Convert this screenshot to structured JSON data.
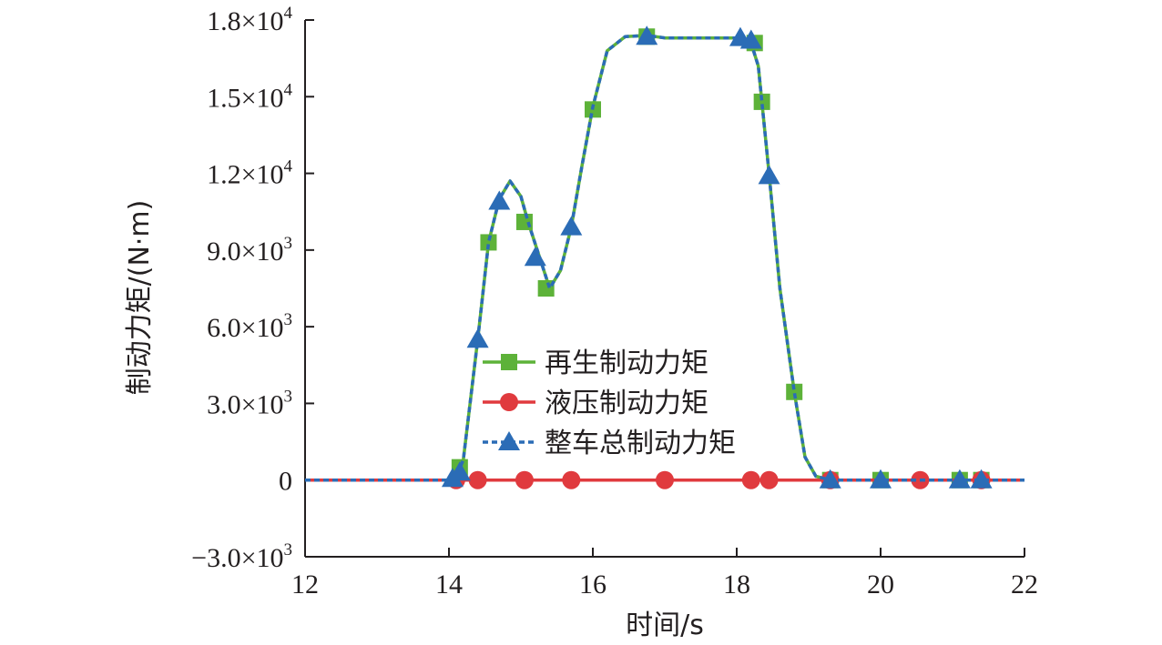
{
  "chart_data": {
    "type": "line",
    "title": "",
    "xlabel": "时间/s",
    "ylabel": "制动力矩/(N·m)",
    "xlim": [
      12,
      22
    ],
    "ylim": [
      -3000,
      18000
    ],
    "x_ticks": [
      12,
      14,
      16,
      18,
      20,
      22
    ],
    "x_tick_labels": [
      "12",
      "14",
      "16",
      "18",
      "20",
      "22"
    ],
    "y_ticks": [
      {
        "value": 18000,
        "mant": "1.8×10",
        "exp": "4"
      },
      {
        "value": 15000,
        "mant": "1.5×10",
        "exp": "4"
      },
      {
        "value": 12000,
        "mant": "1.2×10",
        "exp": "4"
      },
      {
        "value": 9000,
        "mant": "9.0×10",
        "exp": "3"
      },
      {
        "value": 6000,
        "mant": "6.0×10",
        "exp": "3"
      },
      {
        "value": 3000,
        "mant": "3.0×10",
        "exp": "3"
      },
      {
        "value": 0,
        "mant": "0",
        "exp": ""
      },
      {
        "value": -3000,
        "mant": "−3.0×10",
        "exp": "3"
      }
    ],
    "grid": false,
    "legend_position": "center-left",
    "series": [
      {
        "name": "再生制动力矩",
        "color": "#5db239",
        "marker": "square",
        "dash": "solid",
        "x": [
          12,
          14,
          14.1,
          14.2,
          14.4,
          14.55,
          14.7,
          14.85,
          15.0,
          15.1,
          15.25,
          15.4,
          15.55,
          15.7,
          15.85,
          16.0,
          16.2,
          16.45,
          16.75,
          17.0,
          17.5,
          18.0,
          18.1,
          18.2,
          18.3,
          18.45,
          18.6,
          18.8,
          18.95,
          19.1,
          19.3,
          20.0,
          21.0,
          22.0
        ],
        "y": [
          0,
          0,
          100,
          800,
          5500,
          9300,
          11000,
          11700,
          11100,
          10100,
          8800,
          7500,
          8200,
          9900,
          12300,
          14600,
          16800,
          17350,
          17400,
          17300,
          17300,
          17300,
          17250,
          17100,
          16200,
          12000,
          7500,
          3450,
          900,
          150,
          0,
          0,
          0,
          0
        ],
        "markers_x": [
          14.15,
          14.55,
          15.05,
          15.35,
          16.0,
          16.75,
          18.25,
          18.35,
          18.8,
          19.3,
          20.0,
          21.1,
          21.4
        ],
        "markers_y": [
          500,
          9300,
          10100,
          7500,
          14500,
          17350,
          17100,
          14800,
          3450,
          0,
          0,
          0,
          0
        ]
      },
      {
        "name": "液压制动力矩",
        "color": "#e03a3e",
        "marker": "circle",
        "dash": "solid",
        "x": [
          12,
          22
        ],
        "y": [
          0,
          0
        ],
        "markers_x": [
          14.1,
          14.4,
          15.05,
          15.7,
          17.0,
          18.2,
          18.45,
          19.3,
          20.55,
          21.4
        ],
        "markers_y": [
          0,
          0,
          0,
          0,
          0,
          0,
          0,
          0,
          0,
          0
        ]
      },
      {
        "name": "整车总制动力矩",
        "color": "#2b6cb6",
        "marker": "triangle",
        "dash": "dashed",
        "x": [
          12,
          14,
          14.1,
          14.2,
          14.4,
          14.55,
          14.7,
          14.85,
          15.0,
          15.1,
          15.25,
          15.4,
          15.55,
          15.7,
          15.85,
          16.0,
          16.2,
          16.45,
          16.75,
          17.0,
          17.5,
          18.0,
          18.1,
          18.2,
          18.3,
          18.45,
          18.6,
          18.8,
          18.95,
          19.1,
          19.3,
          20.0,
          21.0,
          22.0
        ],
        "y": [
          0,
          0,
          100,
          800,
          5500,
          9300,
          11000,
          11700,
          11100,
          10100,
          8800,
          7500,
          8200,
          9900,
          12300,
          14600,
          16800,
          17350,
          17400,
          17300,
          17300,
          17300,
          17250,
          17100,
          16200,
          12000,
          7500,
          3450,
          900,
          150,
          0,
          0,
          0,
          0
        ],
        "markers_x": [
          14.05,
          14.15,
          14.4,
          14.7,
          15.2,
          15.7,
          16.75,
          18.05,
          18.2,
          18.45,
          19.3,
          20.0,
          21.1,
          21.4
        ],
        "markers_y": [
          50,
          300,
          5500,
          10900,
          8700,
          9900,
          17350,
          17300,
          17200,
          11900,
          0,
          0,
          0,
          0
        ]
      }
    ]
  }
}
